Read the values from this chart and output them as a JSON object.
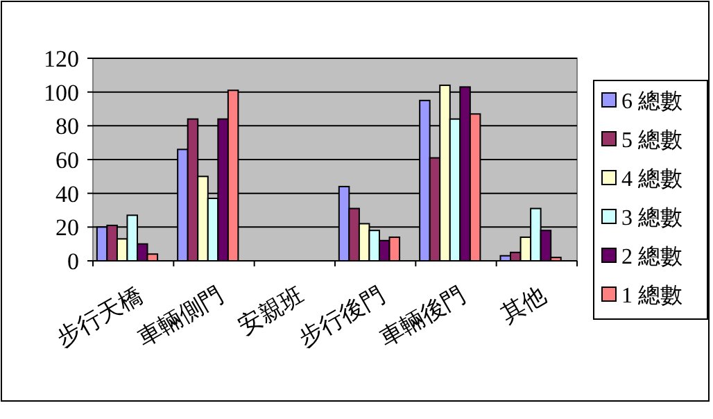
{
  "chart_data": {
    "type": "bar",
    "categories": [
      "步行天橋",
      "車輛側門",
      "安親班",
      "步行後門",
      "車輛後門",
      "其他"
    ],
    "series": [
      {
        "name": "6 總數",
        "color": "#9999ff",
        "values": [
          20,
          66,
          0,
          44,
          95,
          3
        ]
      },
      {
        "name": "5 總數",
        "color": "#993366",
        "values": [
          21,
          84,
          0,
          31,
          61,
          5
        ]
      },
      {
        "name": "4 總數",
        "color": "#ffffcc",
        "values": [
          13,
          50,
          0,
          22,
          104,
          14
        ]
      },
      {
        "name": "3 總數",
        "color": "#ccffff",
        "values": [
          27,
          37,
          0,
          18,
          84,
          31
        ]
      },
      {
        "name": "2 總數",
        "color": "#660066",
        "values": [
          10,
          84,
          0,
          12,
          103,
          18
        ]
      },
      {
        "name": "1 總數",
        "color": "#ff8080",
        "values": [
          4,
          101,
          0,
          14,
          87,
          2
        ]
      }
    ],
    "ylim": [
      0,
      120
    ],
    "yticks": [
      0,
      20,
      40,
      60,
      80,
      100,
      120
    ],
    "grid": "y",
    "legend": "right"
  }
}
